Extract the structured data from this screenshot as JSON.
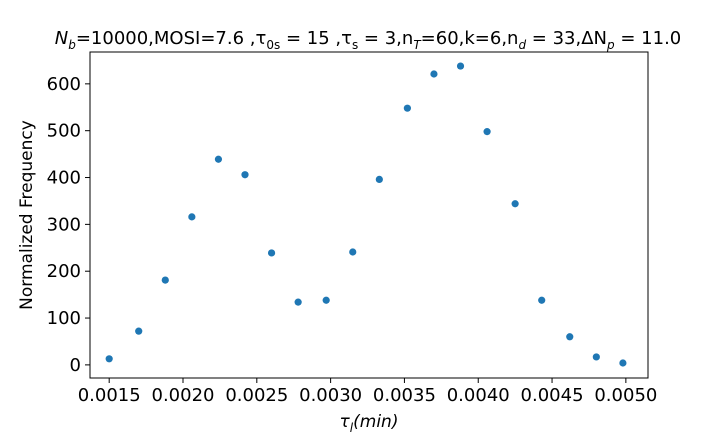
{
  "chart_data": {
    "type": "scatter",
    "title_parts": {
      "a": "N",
      "a_sub": "b",
      "b": "=10000,MOSI=7.6 ,τ",
      "b_sub": "0s",
      "c": " = 15 ,τ",
      "c_sub": "s",
      "d": " = 3,n",
      "d_sub": "T",
      "e": "=60,k=6,n",
      "e_sub": "d",
      "f": " = 33,ΔN",
      "f_sub": "p",
      "g": " = 11.0"
    },
    "xlabel": {
      "main": "τ",
      "sub": "l",
      "rest": "(min)"
    },
    "ylabel": "Normalized Frequency",
    "xlim": [
      0.00137,
      0.00515
    ],
    "ylim": [
      -28,
      668
    ],
    "xticks": [
      0.0015,
      0.002,
      0.0025,
      0.003,
      0.0035,
      0.004,
      0.0045,
      0.005
    ],
    "xtick_labels": [
      "0.0015",
      "0.0020",
      "0.0025",
      "0.0030",
      "0.0035",
      "0.0040",
      "0.0045",
      "0.0050"
    ],
    "yticks": [
      0,
      100,
      200,
      300,
      400,
      500,
      600
    ],
    "ytick_labels": [
      "0",
      "100",
      "200",
      "300",
      "400",
      "500",
      "600"
    ],
    "grid": false,
    "color": "#1f77b4",
    "points": [
      {
        "x": 0.0015,
        "y": 13
      },
      {
        "x": 0.0017,
        "y": 72
      },
      {
        "x": 0.00188,
        "y": 181
      },
      {
        "x": 0.00206,
        "y": 316
      },
      {
        "x": 0.00224,
        "y": 439
      },
      {
        "x": 0.00242,
        "y": 406
      },
      {
        "x": 0.0026,
        "y": 239
      },
      {
        "x": 0.00278,
        "y": 134
      },
      {
        "x": 0.00297,
        "y": 138
      },
      {
        "x": 0.00315,
        "y": 241
      },
      {
        "x": 0.00333,
        "y": 396
      },
      {
        "x": 0.00352,
        "y": 548
      },
      {
        "x": 0.0037,
        "y": 621
      },
      {
        "x": 0.00388,
        "y": 638
      },
      {
        "x": 0.00406,
        "y": 498
      },
      {
        "x": 0.00425,
        "y": 344
      },
      {
        "x": 0.00443,
        "y": 138
      },
      {
        "x": 0.00462,
        "y": 60
      },
      {
        "x": 0.0048,
        "y": 17
      },
      {
        "x": 0.00498,
        "y": 4
      }
    ]
  }
}
